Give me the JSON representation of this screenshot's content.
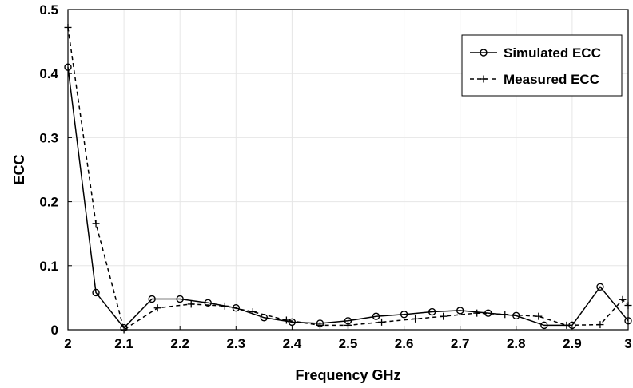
{
  "chart_data": {
    "type": "line",
    "title": "",
    "xlabel": "Frequency GHz",
    "ylabel": "ECC",
    "xlim": [
      2,
      3
    ],
    "ylim": [
      0,
      0.5
    ],
    "x_ticks": [
      "2",
      "2.1",
      "2.2",
      "2.3",
      "2.4",
      "2.5",
      "2.6",
      "2.7",
      "2.8",
      "2.9",
      "3"
    ],
    "y_ticks": [
      "0",
      "0.1",
      "0.2",
      "0.3",
      "0.4",
      "0.5"
    ],
    "grid": true,
    "legend_position": "top-right",
    "series": [
      {
        "name": "Simulated ECC",
        "color": "#000000",
        "line_style": "solid",
        "marker": "circle",
        "x": [
          2.0,
          2.05,
          2.1,
          2.15,
          2.2,
          2.25,
          2.3,
          2.35,
          2.4,
          2.45,
          2.5,
          2.55,
          2.6,
          2.65,
          2.7,
          2.75,
          2.8,
          2.85,
          2.9,
          2.95,
          3.0
        ],
        "values": [
          0.41,
          0.058,
          0.003,
          0.048,
          0.048,
          0.042,
          0.034,
          0.019,
          0.012,
          0.01,
          0.014,
          0.021,
          0.024,
          0.028,
          0.03,
          0.026,
          0.022,
          0.007,
          0.007,
          0.067,
          0.014
        ]
      },
      {
        "name": "Measured ECC",
        "color": "#000000",
        "line_style": "dashed",
        "marker": "plus",
        "x": [
          2.0,
          2.05,
          2.1,
          2.16,
          2.22,
          2.28,
          2.33,
          2.39,
          2.45,
          2.5,
          2.56,
          2.62,
          2.67,
          2.73,
          2.78,
          2.84,
          2.89,
          2.95,
          2.99,
          3.0
        ],
        "values": [
          0.472,
          0.166,
          0.0,
          0.034,
          0.04,
          0.037,
          0.028,
          0.015,
          0.007,
          0.007,
          0.012,
          0.017,
          0.021,
          0.026,
          0.024,
          0.021,
          0.007,
          0.008,
          0.047,
          0.038
        ]
      }
    ]
  }
}
